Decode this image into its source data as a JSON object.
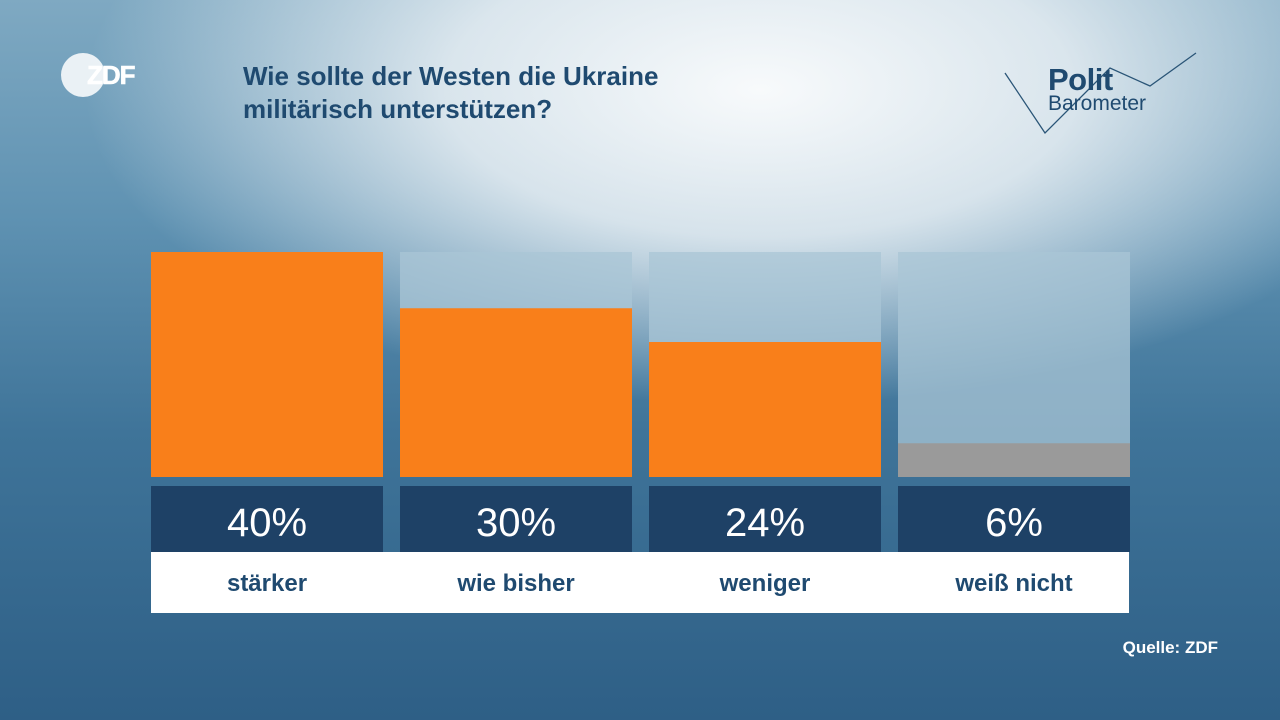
{
  "header": {
    "title_lines": [
      "Wie sollte der Westen die Ukraine",
      "militärisch unterstützen?"
    ],
    "logo": "ZDF",
    "brand_word_1": "Polit",
    "brand_word_2": "Barometer"
  },
  "footer": {
    "source": "Quelle: ZDF"
  },
  "colors": {
    "bar": "#f97f1a",
    "bar_neutral": "#9a9a9a",
    "track": "#a9c6d6",
    "label_band": "#1e4166",
    "text_dark": "#1f4a70"
  },
  "chart_data": {
    "type": "bar",
    "title": "Wie sollte der Westen die Ukraine militärisch unterstützen?",
    "categories": [
      "stärker",
      "wie bisher",
      "weniger",
      "weiß nicht"
    ],
    "values": [
      40,
      30,
      24,
      6
    ],
    "value_labels": [
      "40%",
      "30%",
      "24%",
      "6%"
    ],
    "neutral_categories": [
      "weiß nicht"
    ],
    "ylim": [
      0,
      40
    ],
    "grid": false,
    "legend": "none"
  }
}
